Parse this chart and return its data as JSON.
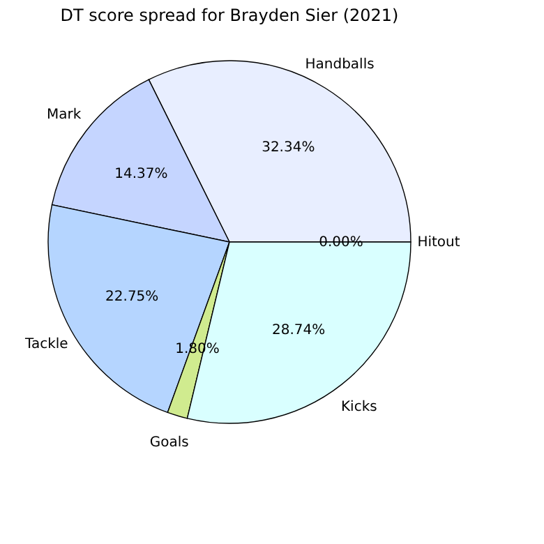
{
  "chart_data": {
    "type": "pie",
    "title": "DT score spread for Brayden Sier (2021)",
    "categories": [
      "Hitout",
      "Handballs",
      "Mark",
      "Tackle",
      "Goals",
      "Kicks"
    ],
    "values": [
      0.0,
      32.34,
      14.37,
      22.75,
      1.8,
      28.74
    ],
    "value_labels": [
      "0.00%",
      "32.34%",
      "14.37%",
      "22.75%",
      "1.80%",
      "28.74%"
    ],
    "colors": [
      "#ffe0e0",
      "#e8eeff",
      "#c5d5ff",
      "#b5d5ff",
      "#d0eb8f",
      "#d9ffff"
    ],
    "legend": false
  }
}
